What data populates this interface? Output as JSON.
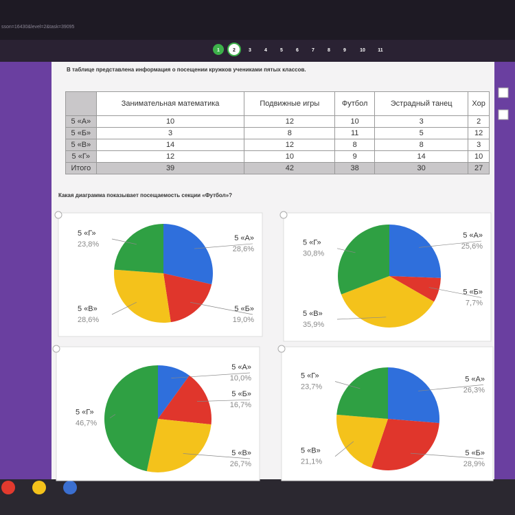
{
  "url": "sson=16430&level=2&task=39095",
  "steps": [
    1,
    2,
    3,
    4,
    5,
    6,
    7,
    8,
    9,
    10,
    11
  ],
  "intro": "В таблице представлена информация о посещении кружков учениками пятых классов.",
  "table": {
    "columns": [
      "Занимательная математика",
      "Подвижные игры",
      "Футбол",
      "Эстрадный танец",
      "Хор"
    ],
    "rows": [
      {
        "label": "5 «А»",
        "cells": [
          10,
          12,
          10,
          3,
          2
        ]
      },
      {
        "label": "5 «Б»",
        "cells": [
          3,
          8,
          11,
          5,
          12
        ]
      },
      {
        "label": "5 «В»",
        "cells": [
          14,
          12,
          8,
          8,
          3
        ]
      },
      {
        "label": "5 «Г»",
        "cells": [
          12,
          10,
          9,
          14,
          10
        ]
      },
      {
        "label": "Итого",
        "cells": [
          39,
          42,
          38,
          30,
          27
        ]
      }
    ]
  },
  "question": "Какая диаграмма показывает посещаемость секции «Футбол»?",
  "chart_data": [
    {
      "type": "pie",
      "categories": [
        "5 «А»",
        "5 «Б»",
        "5 «В»",
        "5 «Г»"
      ],
      "values": [
        28.6,
        19.0,
        28.6,
        23.8
      ],
      "value_labels": [
        "28,6%",
        "19,0%",
        "28,6%",
        "23,8%"
      ],
      "colors": [
        "#2f6fdc",
        "#e0362c",
        "#f4c21b",
        "#2fa043"
      ]
    },
    {
      "type": "pie",
      "categories": [
        "5 «А»",
        "5 «Б»",
        "5 «В»",
        "5 «Г»"
      ],
      "values": [
        25.6,
        7.7,
        35.9,
        30.8
      ],
      "value_labels": [
        "25,6%",
        "7,7%",
        "35,9%",
        "30,8%"
      ],
      "colors": [
        "#2f6fdc",
        "#e0362c",
        "#f4c21b",
        "#2fa043"
      ]
    },
    {
      "type": "pie",
      "categories": [
        "5 «А»",
        "5 «Б»",
        "5 «В»",
        "5 «Г»"
      ],
      "values": [
        10.0,
        16.7,
        26.7,
        46.7
      ],
      "value_labels": [
        "10,0%",
        "16,7%",
        "26,7%",
        "46,7%"
      ],
      "colors": [
        "#2f6fdc",
        "#e0362c",
        "#f4c21b",
        "#2fa043"
      ]
    },
    {
      "type": "pie",
      "categories": [
        "5 «А»",
        "5 «Б»",
        "5 «В»",
        "5 «Г»"
      ],
      "values": [
        26.3,
        28.9,
        21.1,
        23.7
      ],
      "value_labels": [
        "26,3%",
        "28,9%",
        "21,1%",
        "23,7%"
      ],
      "colors": [
        "#2f6fdc",
        "#e0362c",
        "#f4c21b",
        "#2fa043"
      ]
    }
  ]
}
